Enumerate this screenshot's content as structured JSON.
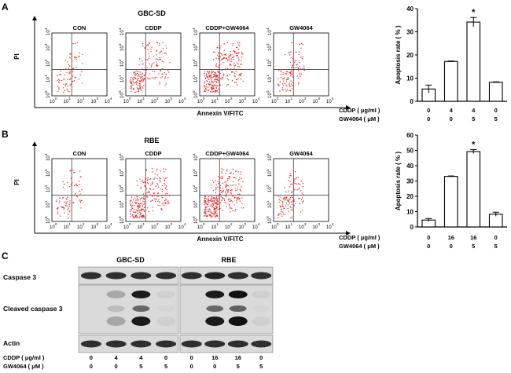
{
  "panels": [
    {
      "letter": "A",
      "cell_line": "GBC-SD",
      "flow": {
        "x_axis_label": "Annexin V/FITC",
        "y_axis_label": "PI",
        "tick_exponents": [
          "0",
          "1",
          "2",
          "3",
          "4"
        ],
        "tick_base": "10",
        "plots": [
          {
            "label": "CON",
            "dots": 80
          },
          {
            "label": "CDDP",
            "dots": 200
          },
          {
            "label": "CDDP+GW4064",
            "dots": 300
          },
          {
            "label": "GW4064",
            "dots": 120
          }
        ]
      },
      "rows": [
        {
          "label": "CDDP ( μg/ml )",
          "values": [
            "0",
            "4",
            "4",
            "0"
          ]
        },
        {
          "label": "GW4064 ( μM )",
          "values": [
            "0",
            "0",
            "5",
            "5"
          ]
        }
      ]
    },
    {
      "letter": "B",
      "cell_line": "RBE",
      "flow": {
        "x_axis_label": "Annexin V/FITC",
        "y_axis_label": "PI",
        "tick_exponents": [
          "0",
          "1",
          "2",
          "3",
          "4"
        ],
        "tick_base": "10",
        "plots": [
          {
            "label": "CON",
            "dots": 80
          },
          {
            "label": "CDDP",
            "dots": 260
          },
          {
            "label": "CDDP+GW4064",
            "dots": 320
          },
          {
            "label": "GW4064",
            "dots": 120
          }
        ]
      },
      "rows": [
        {
          "label": "CDDP ( μg/ml )",
          "values": [
            "0",
            "16",
            "16",
            "0"
          ]
        },
        {
          "label": "GW4064 ( μM )",
          "values": [
            "0",
            "0",
            "5",
            "5"
          ]
        }
      ]
    }
  ],
  "chart_data": [
    {
      "type": "bar",
      "categories": [
        "1",
        "2",
        "3",
        "4"
      ],
      "values": [
        5.3,
        17.2,
        34.2,
        8.2
      ],
      "errors": [
        1.7,
        0.2,
        2.0,
        0.2
      ],
      "significance": [
        "",
        "",
        "*",
        ""
      ],
      "ylabel": "Apoptosis rate ( % )",
      "ylim": [
        0,
        40
      ],
      "yticks": [
        0,
        10,
        20,
        30,
        40
      ]
    },
    {
      "type": "bar",
      "categories": [
        "1",
        "2",
        "3",
        "4"
      ],
      "values": [
        4.5,
        33.0,
        49.2,
        8.3
      ],
      "errors": [
        1.0,
        0.3,
        1.3,
        1.3
      ],
      "significance": [
        "",
        "",
        "*",
        ""
      ],
      "ylabel": "Apoptosis rate ( % )",
      "ylim": [
        0,
        60
      ],
      "yticks": [
        0,
        10,
        20,
        30,
        40,
        50,
        60
      ]
    }
  ],
  "western": {
    "letter": "C",
    "groups": [
      "GBC-SD",
      "RBE"
    ],
    "rows": [
      {
        "label": "Caspase 3",
        "intensity": [
          0.85,
          0.85,
          0.85,
          0.85,
          0.85,
          0.9,
          0.85,
          0.85
        ]
      },
      {
        "label": "Cleaved caspase 3",
        "intensity": [
          0.0,
          0.25,
          0.95,
          0.05,
          0.0,
          0.95,
          1.0,
          0.05
        ]
      },
      {
        "label": "Actin",
        "intensity": [
          0.85,
          0.85,
          0.85,
          0.85,
          0.85,
          0.85,
          0.85,
          0.85
        ]
      }
    ],
    "conditions": [
      {
        "label": "CDDP ( μg/ml )",
        "values": [
          "0",
          "4",
          "4",
          "0",
          "0",
          "16",
          "16",
          "0"
        ]
      },
      {
        "label": "GW4064 ( μM )",
        "values": [
          "0",
          "0",
          "5",
          "5",
          "0",
          "0",
          "5",
          "5"
        ]
      }
    ]
  },
  "colors": {
    "dots": "#e8282a",
    "blot_bg": "#dadada",
    "band": "#111111"
  }
}
